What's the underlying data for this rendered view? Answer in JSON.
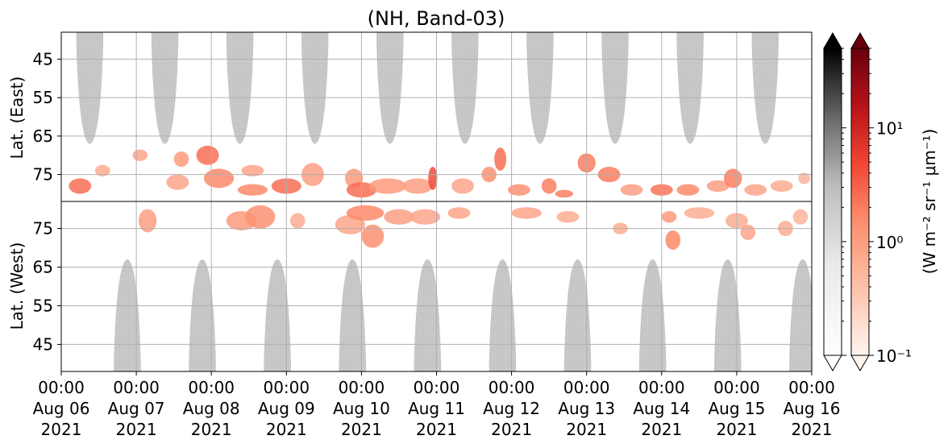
{
  "chart_data": {
    "type": "heatmap",
    "title": "(NH, Band-03)",
    "ylabel_top": "Lat. (East)",
    "ylabel_bottom": "Lat. (West)",
    "x_ticks": [
      [
        "00:00",
        "Aug 06",
        "2021"
      ],
      [
        "00:00",
        "Aug 07",
        "2021"
      ],
      [
        "00:00",
        "Aug 08",
        "2021"
      ],
      [
        "00:00",
        "Aug 09",
        "2021"
      ],
      [
        "00:00",
        "Aug 10",
        "2021"
      ],
      [
        "00:00",
        "Aug 11",
        "2021"
      ],
      [
        "00:00",
        "Aug 12",
        "2021"
      ],
      [
        "00:00",
        "Aug 13",
        "2021"
      ],
      [
        "00:00",
        "Aug 14",
        "2021"
      ],
      [
        "00:00",
        "Aug 15",
        "2021"
      ],
      [
        "00:00",
        "Aug 16",
        "2021"
      ]
    ],
    "xlim_days": [
      0,
      10
    ],
    "y_ticks_top": [
      "45",
      "55",
      "65",
      "75"
    ],
    "y_ticks_bottom": [
      "75",
      "65",
      "55",
      "45"
    ],
    "ylim_top_deg": [
      38,
      82
    ],
    "ylim_bottom_deg": [
      82,
      38
    ],
    "grid": true,
    "colorbar": {
      "label": "(W m⁻² sr⁻¹ μm⁻¹)",
      "scale": "log",
      "range": [
        0.1,
        50
      ],
      "tick_labels": [
        "10⁻¹",
        "10⁰",
        "10¹"
      ],
      "tick_values": [
        0.1,
        1,
        10
      ],
      "cmaps": [
        "Greys",
        "Reds"
      ],
      "extend": "both"
    },
    "daylight_hemisphere": {
      "top_centers_days": [
        0.38,
        1.38,
        2.38,
        3.38,
        4.38,
        5.38,
        6.38,
        7.38,
        8.38,
        9.38
      ],
      "bottom_centers_days": [
        0.88,
        1.88,
        2.88,
        3.88,
        4.88,
        5.88,
        6.88,
        7.88,
        8.88,
        9.88
      ],
      "half_width_days": 0.18,
      "edge_lat_deg": 67,
      "color": "#c8c8c8"
    },
    "aurora_patches": [
      {
        "panel": "top",
        "day": 0.25,
        "lat": 78,
        "dd": 0.15,
        "dl": 4,
        "v": 2
      },
      {
        "panel": "top",
        "day": 0.55,
        "lat": 74,
        "dd": 0.1,
        "dl": 3,
        "v": 0.5
      },
      {
        "panel": "top",
        "day": 1.05,
        "lat": 70,
        "dd": 0.1,
        "dl": 3,
        "v": 0.6
      },
      {
        "panel": "top",
        "day": 1.55,
        "lat": 77,
        "dd": 0.15,
        "dl": 4,
        "v": 0.6
      },
      {
        "panel": "top",
        "day": 1.6,
        "lat": 71,
        "dd": 0.1,
        "dl": 4,
        "v": 0.8
      },
      {
        "panel": "top",
        "day": 1.95,
        "lat": 70,
        "dd": 0.15,
        "dl": 5,
        "v": 2
      },
      {
        "panel": "top",
        "day": 2.1,
        "lat": 76,
        "dd": 0.2,
        "dl": 5,
        "v": 1.2
      },
      {
        "panel": "top",
        "day": 2.55,
        "lat": 79,
        "dd": 0.2,
        "dl": 3,
        "v": 1.2
      },
      {
        "panel": "top",
        "day": 2.55,
        "lat": 74,
        "dd": 0.15,
        "dl": 3,
        "v": 0.6
      },
      {
        "panel": "top",
        "day": 3.0,
        "lat": 78,
        "dd": 0.2,
        "dl": 4,
        "v": 2
      },
      {
        "panel": "top",
        "day": 3.35,
        "lat": 75,
        "dd": 0.15,
        "dl": 6,
        "v": 0.7
      },
      {
        "panel": "top",
        "day": 3.9,
        "lat": 76,
        "dd": 0.12,
        "dl": 5,
        "v": 0.8
      },
      {
        "panel": "top",
        "day": 4.0,
        "lat": 79,
        "dd": 0.2,
        "dl": 4,
        "v": 2
      },
      {
        "panel": "top",
        "day": 4.35,
        "lat": 78,
        "dd": 0.25,
        "dl": 4,
        "v": 0.8
      },
      {
        "panel": "top",
        "day": 4.75,
        "lat": 78,
        "dd": 0.2,
        "dl": 4,
        "v": 0.7
      },
      {
        "panel": "top",
        "day": 4.95,
        "lat": 76,
        "dd": 0.06,
        "dl": 6,
        "v": 4
      },
      {
        "panel": "top",
        "day": 5.35,
        "lat": 78,
        "dd": 0.15,
        "dl": 4,
        "v": 0.6
      },
      {
        "panel": "top",
        "day": 5.7,
        "lat": 75,
        "dd": 0.1,
        "dl": 4,
        "v": 1
      },
      {
        "panel": "top",
        "day": 5.85,
        "lat": 71,
        "dd": 0.08,
        "dl": 6,
        "v": 2
      },
      {
        "panel": "top",
        "day": 6.1,
        "lat": 79,
        "dd": 0.15,
        "dl": 3,
        "v": 1
      },
      {
        "panel": "top",
        "day": 6.5,
        "lat": 78,
        "dd": 0.1,
        "dl": 4,
        "v": 1.5
      },
      {
        "panel": "top",
        "day": 6.7,
        "lat": 80,
        "dd": 0.12,
        "dl": 2,
        "v": 1.5
      },
      {
        "panel": "top",
        "day": 7.0,
        "lat": 72,
        "dd": 0.12,
        "dl": 5,
        "v": 1.5
      },
      {
        "panel": "top",
        "day": 7.3,
        "lat": 75,
        "dd": 0.15,
        "dl": 4,
        "v": 1.5
      },
      {
        "panel": "top",
        "day": 7.6,
        "lat": 79,
        "dd": 0.15,
        "dl": 3,
        "v": 0.7
      },
      {
        "panel": "top",
        "day": 8.0,
        "lat": 79,
        "dd": 0.15,
        "dl": 3,
        "v": 1.8
      },
      {
        "panel": "top",
        "day": 8.35,
        "lat": 79,
        "dd": 0.15,
        "dl": 3,
        "v": 1.2
      },
      {
        "panel": "top",
        "day": 8.75,
        "lat": 78,
        "dd": 0.15,
        "dl": 3,
        "v": 0.7
      },
      {
        "panel": "top",
        "day": 8.95,
        "lat": 76,
        "dd": 0.12,
        "dl": 5,
        "v": 1.5
      },
      {
        "panel": "top",
        "day": 9.25,
        "lat": 79,
        "dd": 0.15,
        "dl": 3,
        "v": 0.6
      },
      {
        "panel": "top",
        "day": 9.6,
        "lat": 78,
        "dd": 0.15,
        "dl": 3,
        "v": 0.5
      },
      {
        "panel": "top",
        "day": 9.9,
        "lat": 76,
        "dd": 0.08,
        "dl": 3,
        "v": 0.4
      },
      {
        "panel": "bottom",
        "day": 1.15,
        "lat": 77,
        "dd": 0.12,
        "dl": 6,
        "v": 0.7
      },
      {
        "panel": "bottom",
        "day": 2.4,
        "lat": 77,
        "dd": 0.2,
        "dl": 5,
        "v": 0.8
      },
      {
        "panel": "bottom",
        "day": 2.65,
        "lat": 78,
        "dd": 0.2,
        "dl": 6,
        "v": 1
      },
      {
        "panel": "bottom",
        "day": 3.15,
        "lat": 77,
        "dd": 0.1,
        "dl": 4,
        "v": 0.5
      },
      {
        "panel": "bottom",
        "day": 3.85,
        "lat": 76,
        "dd": 0.2,
        "dl": 5,
        "v": 0.6
      },
      {
        "panel": "bottom",
        "day": 4.05,
        "lat": 79,
        "dd": 0.25,
        "dl": 4,
        "v": 1.2
      },
      {
        "panel": "bottom",
        "day": 4.15,
        "lat": 73,
        "dd": 0.15,
        "dl": 6,
        "v": 1
      },
      {
        "panel": "bottom",
        "day": 4.5,
        "lat": 78,
        "dd": 0.2,
        "dl": 4,
        "v": 0.7
      },
      {
        "panel": "bottom",
        "day": 4.85,
        "lat": 78,
        "dd": 0.2,
        "dl": 4,
        "v": 0.6
      },
      {
        "panel": "bottom",
        "day": 5.3,
        "lat": 79,
        "dd": 0.15,
        "dl": 3,
        "v": 0.6
      },
      {
        "panel": "bottom",
        "day": 6.2,
        "lat": 79,
        "dd": 0.2,
        "dl": 3,
        "v": 0.6
      },
      {
        "panel": "bottom",
        "day": 6.75,
        "lat": 78,
        "dd": 0.15,
        "dl": 3,
        "v": 0.5
      },
      {
        "panel": "bottom",
        "day": 7.45,
        "lat": 75,
        "dd": 0.1,
        "dl": 3,
        "v": 0.5
      },
      {
        "panel": "bottom",
        "day": 8.1,
        "lat": 78,
        "dd": 0.1,
        "dl": 3,
        "v": 0.8
      },
      {
        "panel": "bottom",
        "day": 8.15,
        "lat": 72,
        "dd": 0.1,
        "dl": 5,
        "v": 1.2
      },
      {
        "panel": "bottom",
        "day": 8.5,
        "lat": 79,
        "dd": 0.2,
        "dl": 3,
        "v": 0.5
      },
      {
        "panel": "bottom",
        "day": 9.0,
        "lat": 77,
        "dd": 0.15,
        "dl": 4,
        "v": 0.5
      },
      {
        "panel": "bottom",
        "day": 9.15,
        "lat": 74,
        "dd": 0.1,
        "dl": 4,
        "v": 0.6
      },
      {
        "panel": "bottom",
        "day": 9.65,
        "lat": 75,
        "dd": 0.1,
        "dl": 4,
        "v": 0.5
      },
      {
        "panel": "bottom",
        "day": 9.85,
        "lat": 78,
        "dd": 0.1,
        "dl": 4,
        "v": 0.4
      }
    ]
  }
}
